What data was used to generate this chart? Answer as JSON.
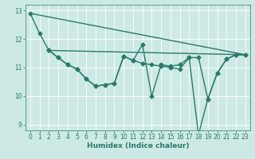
{
  "title": "",
  "xlabel": "Humidex (Indice chaleur)",
  "ylabel": "",
  "background_color": "#cce9e5",
  "grid_color": "#ffffff",
  "line_color": "#2a7a6a",
  "xlim": [
    -0.5,
    23.5
  ],
  "ylim": [
    8.8,
    13.2
  ],
  "yticks": [
    9,
    10,
    11,
    12,
    13
  ],
  "xticks": [
    0,
    1,
    2,
    3,
    4,
    5,
    6,
    7,
    8,
    9,
    10,
    11,
    12,
    13,
    14,
    15,
    16,
    17,
    18,
    19,
    20,
    21,
    22,
    23
  ],
  "series1": {
    "x": [
      0,
      1,
      2,
      3,
      4,
      5,
      6,
      7,
      8,
      9,
      10,
      11,
      12,
      13,
      14,
      15,
      16,
      17,
      18,
      19,
      20,
      21,
      22,
      23
    ],
    "y": [
      12.9,
      12.2,
      11.6,
      11.35,
      11.1,
      10.95,
      10.6,
      10.35,
      10.4,
      10.45,
      11.4,
      11.25,
      11.8,
      10.0,
      11.1,
      11.05,
      11.1,
      11.35,
      8.65,
      9.9,
      10.8,
      11.3,
      11.45,
      11.45
    ]
  },
  "series2": {
    "x": [
      2,
      3,
      4,
      5,
      6,
      7,
      8,
      9,
      10,
      11,
      12,
      13,
      14,
      15,
      16,
      17,
      18,
      19,
      20,
      21,
      22,
      23
    ],
    "y": [
      11.6,
      11.35,
      11.1,
      10.95,
      10.6,
      10.35,
      10.4,
      10.45,
      11.4,
      11.25,
      11.15,
      11.1,
      11.05,
      11.0,
      10.95,
      11.35,
      11.35,
      9.9,
      10.8,
      11.3,
      11.45,
      11.45
    ]
  },
  "trend1": {
    "x": [
      0,
      23
    ],
    "y": [
      12.9,
      11.45
    ]
  },
  "trend2": {
    "x": [
      2,
      23
    ],
    "y": [
      11.6,
      11.45
    ]
  },
  "marker_size": 2.5,
  "tick_fontsize": 5.5,
  "label_fontsize": 6.5,
  "linewidth": 1.0
}
